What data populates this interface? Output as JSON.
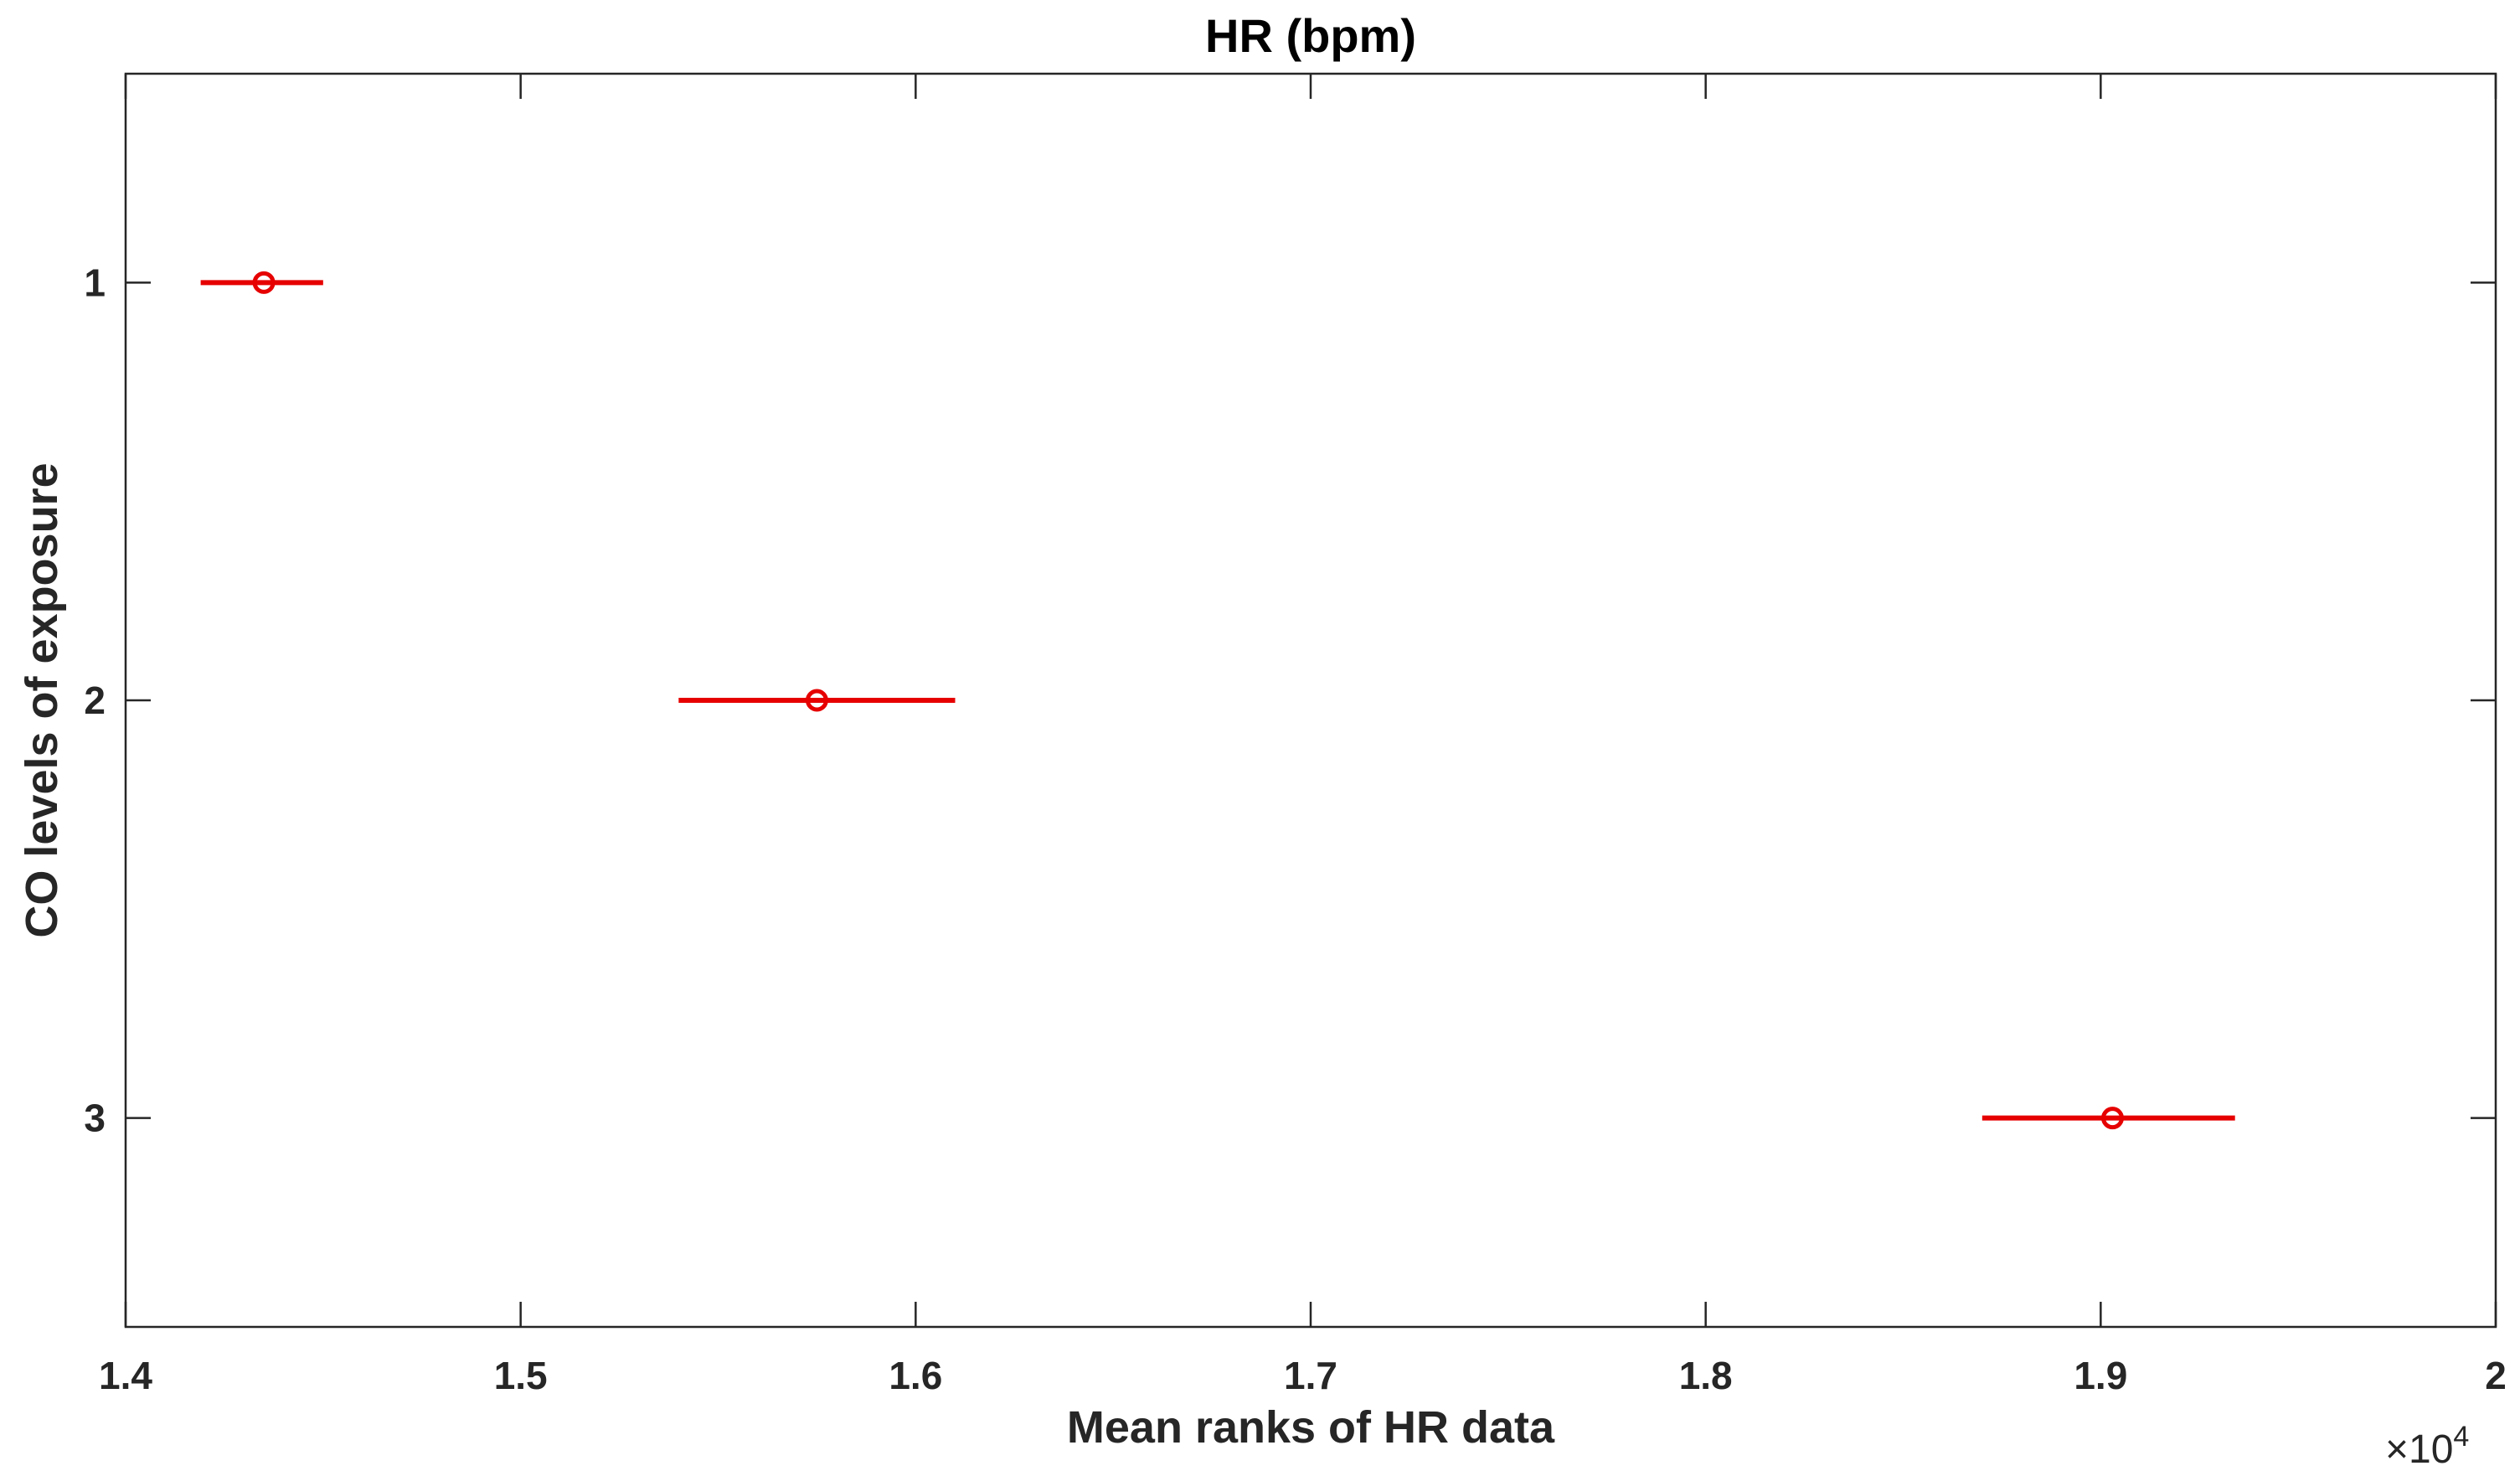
{
  "chart_data": {
    "type": "scatter",
    "title": "HR (bpm)",
    "xlabel": "Mean ranks of HR data",
    "ylabel": "CO levels of exposure",
    "x_multiplier_label": "×10",
    "x_multiplier_exponent": "4",
    "xlim": [
      14000,
      20000
    ],
    "ylim": [
      0.5,
      3.5
    ],
    "y_reversed": true,
    "x_ticks": [
      14000,
      15000,
      16000,
      17000,
      18000,
      19000,
      20000
    ],
    "x_tick_labels": [
      "1.4",
      "1.5",
      "1.6",
      "1.7",
      "1.8",
      "1.9",
      "2"
    ],
    "y_ticks": [
      1,
      2,
      3
    ],
    "y_tick_labels": [
      "1",
      "2",
      "3"
    ],
    "grid": false,
    "series": [
      {
        "points": [
          {
            "group": 1,
            "mean": 14350,
            "low": 14190,
            "high": 14500
          },
          {
            "group": 2,
            "mean": 15750,
            "low": 15400,
            "high": 16100
          },
          {
            "group": 3,
            "mean": 19030,
            "low": 18700,
            "high": 19340
          }
        ],
        "color": "#e60000"
      }
    ]
  }
}
